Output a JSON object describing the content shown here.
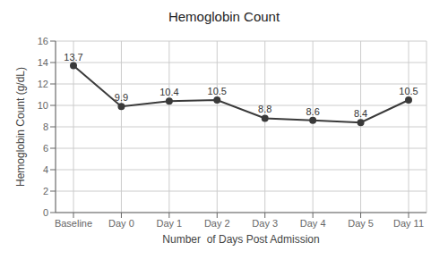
{
  "chart_data": {
    "type": "line",
    "title": "Hemoglobin Count",
    "xlabel": "Number  of Days Post Admission",
    "ylabel": "Hemoglobin Count (g/dL)",
    "categories": [
      "Baseline",
      "Day 0",
      "Day 1",
      "Day 2",
      "Day 3",
      "Day 4",
      "Day 5",
      "Day 11"
    ],
    "values": [
      13.7,
      9.9,
      10.4,
      10.5,
      8.8,
      8.6,
      8.4,
      10.5
    ],
    "color": "#3a3a3a",
    "marker": "circle",
    "ylim": [
      0,
      16
    ],
    "yticks": [
      0,
      2,
      4,
      6,
      8,
      10,
      12,
      14,
      16
    ],
    "grid": true,
    "data_labels": true
  }
}
